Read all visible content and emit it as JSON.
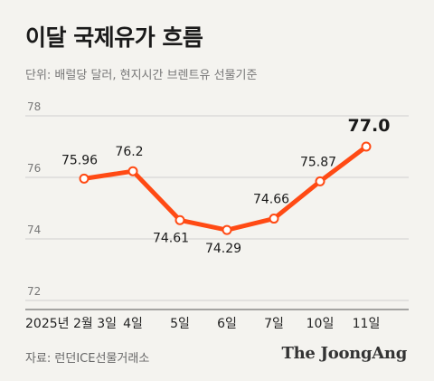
{
  "title": "이달 국제유가 흐름",
  "subtitle": "단위: 배럴당 달러, 현지시간 브렌트유 선물기준",
  "source": "자료: 런던ICE선물거래소",
  "logo": "The JoongAng",
  "colors": {
    "line": "#ff4a14",
    "grid": "#cfcfcf",
    "axis": "#555555",
    "background": "#f4f3ef"
  },
  "chart_data": {
    "type": "line",
    "title": "이달 국제유가 흐름",
    "ylabel": "단위: 배럴당 달러",
    "ylim": [
      72,
      78
    ],
    "yticks": [
      "72",
      "74",
      "76",
      "78"
    ],
    "categories": [
      "2025년 2월 3일",
      "4일",
      "5일",
      "6일",
      "7일",
      "10일",
      "11일"
    ],
    "values": [
      75.96,
      76.2,
      74.61,
      74.29,
      74.66,
      75.87,
      77.0
    ],
    "data_labels": [
      "75.96",
      "76.2",
      "74.61",
      "74.29",
      "74.66",
      "75.87",
      "77.0"
    ],
    "grid": true,
    "legend": "none"
  }
}
